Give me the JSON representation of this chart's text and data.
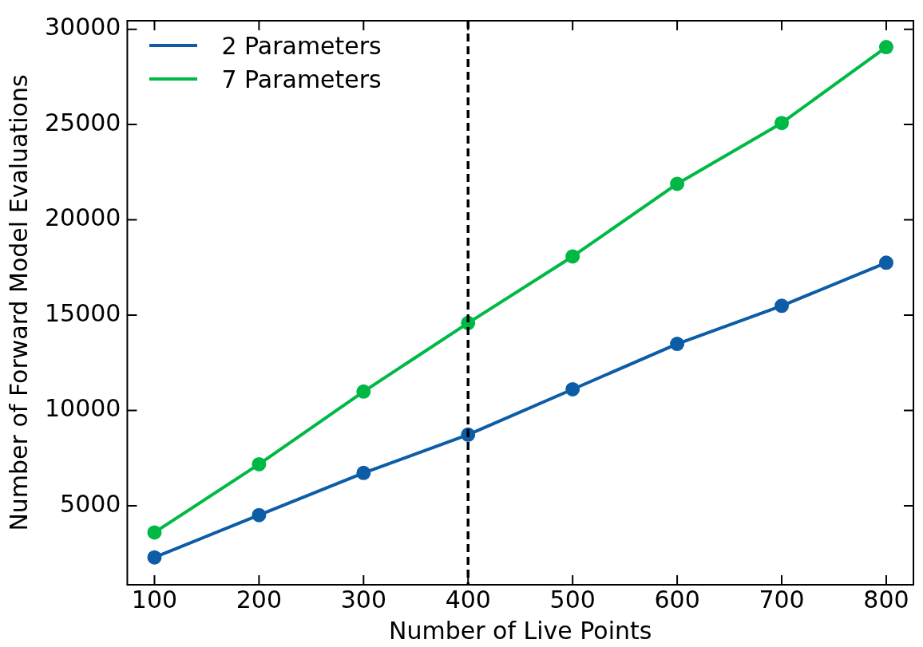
{
  "chart_data": {
    "type": "line",
    "xlabel": "Number of Live Points",
    "ylabel": "Number of Forward Model Evaluations",
    "x": [
      100,
      200,
      300,
      400,
      500,
      600,
      700,
      800
    ],
    "series": [
      {
        "name": "2 Parameters",
        "color": "#0c5da5",
        "values": [
          2290,
          4510,
          6720,
          8730,
          11110,
          13490,
          15490,
          17750
        ]
      },
      {
        "name": "7 Parameters",
        "color": "#00b945",
        "values": [
          3600,
          7180,
          10990,
          14590,
          18080,
          21890,
          25080,
          29060
        ]
      }
    ],
    "xlim": [
      74,
      826
    ],
    "ylim": [
      855,
      30445
    ],
    "xticks": [
      100,
      200,
      300,
      400,
      500,
      600,
      700,
      800
    ],
    "yticks": [
      5000,
      10000,
      15000,
      20000,
      25000,
      30000
    ],
    "ref_lines": [
      {
        "axis": "x",
        "value": 400,
        "color": "#000000",
        "line_style": "dashed"
      }
    ],
    "grid": false,
    "legend": "top left",
    "marker": "circle",
    "line_style": "solid"
  }
}
